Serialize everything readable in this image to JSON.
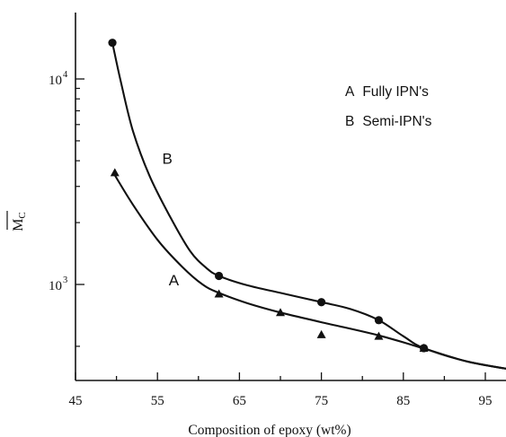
{
  "chart_data": {
    "type": "line",
    "title": "",
    "xlabel": "Composition of epoxy (wt%)",
    "ylabel": "M",
    "ylabel_sub": "C",
    "x_tick_labels": [
      "45",
      "55",
      "65",
      "75",
      "85",
      "95"
    ],
    "x_ticks": [
      45,
      55,
      65,
      75,
      85,
      95
    ],
    "xlim": [
      45,
      100
    ],
    "y_scale": "log",
    "ylim": [
      300,
      20000
    ],
    "y_tick_labels": [
      {
        "base": "10",
        "exp": "4",
        "value": 10000
      },
      {
        "base": "10",
        "exp": "3",
        "value": 1000
      }
    ],
    "legend": {
      "placement": "top-right",
      "entries": [
        {
          "key": "A",
          "label": "Fully IPN's"
        },
        {
          "key": "B",
          "label": "Semi-IPN's"
        }
      ]
    },
    "series": [
      {
        "key": "A",
        "marker": "triangle",
        "curve_label": "A",
        "curve_label_at": [
          57,
          1050
        ],
        "points": [
          [
            49.8,
            3500
          ],
          [
            62.5,
            900
          ],
          [
            70,
            730
          ],
          [
            75,
            570
          ],
          [
            82,
            560
          ],
          [
            87.5,
            490
          ],
          [
            100,
            375
          ]
        ],
        "curve": [
          [
            49.8,
            3400
          ],
          [
            52,
            2450
          ],
          [
            55,
            1650
          ],
          [
            58,
            1220
          ],
          [
            60.5,
            1000
          ],
          [
            62.5,
            910
          ],
          [
            66,
            810
          ],
          [
            70,
            730
          ],
          [
            75,
            655
          ],
          [
            82,
            565
          ],
          [
            87.5,
            488
          ],
          [
            93,
            420
          ],
          [
            100,
            375
          ]
        ]
      },
      {
        "key": "B",
        "marker": "circle",
        "curve_label": "B",
        "curve_label_at": [
          56.2,
          4100
        ],
        "points": [
          [
            49.5,
            15000
          ],
          [
            62.5,
            1100
          ],
          [
            75,
            820
          ],
          [
            82,
            670
          ],
          [
            87.5,
            490
          ],
          [
            100,
            375
          ]
        ],
        "curve": [
          [
            49.5,
            15000
          ],
          [
            50.5,
            9800
          ],
          [
            52,
            5600
          ],
          [
            54,
            3400
          ],
          [
            56.5,
            2150
          ],
          [
            59,
            1450
          ],
          [
            61,
            1200
          ],
          [
            62.5,
            1100
          ],
          [
            66,
            990
          ],
          [
            70,
            910
          ],
          [
            75,
            820
          ],
          [
            78.5,
            760
          ],
          [
            82,
            670
          ],
          [
            85,
            560
          ],
          [
            87.5,
            490
          ],
          [
            93,
            420
          ],
          [
            100,
            375
          ]
        ]
      }
    ]
  }
}
